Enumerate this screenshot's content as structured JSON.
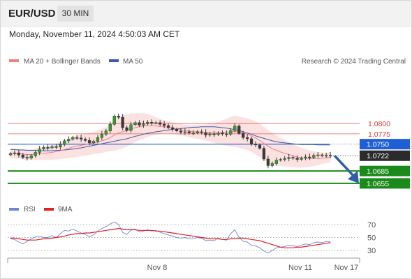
{
  "header": {
    "symbol": "EUR/USD",
    "timeframe": "30 MIN",
    "datetime": "Monday, November 11, 2024 4:50:03 AM CET"
  },
  "legend": {
    "ma20_label": "MA 20 + Bollinger Bands",
    "ma50_label": "MA 50",
    "copyright": "Research © 2024 Trading Central",
    "ma20_color": "#f08080",
    "ma50_color": "#3b5ba9"
  },
  "rsi_legend": {
    "rsi_label": "RSI",
    "ma_label": "9MA",
    "rsi_color": "#6f86d6",
    "ma_color": "#e02020"
  },
  "chart_data": {
    "type": "candlestick",
    "ylim": [
      1.0638,
      1.0898
    ],
    "x_labels": [
      "Nov 8",
      "Nov 11",
      "Nov 17"
    ],
    "price_levels": [
      {
        "value": "1.0800",
        "kind": "resistance",
        "color": "#e53935"
      },
      {
        "value": "1.0775",
        "kind": "resistance",
        "color": "#e53935"
      },
      {
        "value": "1.0750",
        "kind": "pivot",
        "color": "#1e5fd6"
      },
      {
        "value": "1.0722",
        "kind": "last",
        "color": "#2b2b2b"
      },
      {
        "value": "1.0685",
        "kind": "support",
        "color": "#1a8a1a"
      },
      {
        "value": "1.0655",
        "kind": "support",
        "color": "#1a8a1a"
      }
    ],
    "close": [
      1.0727,
      1.0729,
      1.0724,
      1.0718,
      1.0716,
      1.0722,
      1.073,
      1.0738,
      1.0742,
      1.0741,
      1.0744,
      1.0743,
      1.0749,
      1.0758,
      1.0762,
      1.0766,
      1.0765,
      1.0762,
      1.0759,
      1.0753,
      1.0757,
      1.0766,
      1.0774,
      1.0782,
      1.0798,
      1.0818,
      1.0815,
      1.079,
      1.0783,
      1.0797,
      1.0802,
      1.0796,
      1.0799,
      1.0803,
      1.0801,
      1.0802,
      1.0798,
      1.0795,
      1.079,
      1.0786,
      1.0782,
      1.0779,
      1.078,
      1.0777,
      1.0777,
      1.078,
      1.0778,
      1.0772,
      1.0775,
      1.0773,
      1.0777,
      1.0775,
      1.0774,
      1.0783,
      1.0794,
      1.0776,
      1.0766,
      1.0763,
      1.075,
      1.0748,
      1.074,
      1.0714,
      1.0698,
      1.0703,
      1.0711,
      1.0713,
      1.0715,
      1.0718,
      1.0716,
      1.0713,
      1.0716,
      1.0719,
      1.0718,
      1.0723,
      1.0724,
      1.0722,
      1.0723,
      1.0722
    ],
    "ma20": [
      1.0728,
      1.0727,
      1.0727,
      1.0726,
      1.0725,
      1.0725,
      1.0726,
      1.0727,
      1.0728,
      1.0729,
      1.073,
      1.0732,
      1.0734,
      1.0737,
      1.074,
      1.0743,
      1.0745,
      1.0747,
      1.0749,
      1.0751,
      1.0753,
      1.0755,
      1.0758,
      1.0761,
      1.0766,
      1.0772,
      1.0777,
      1.078,
      1.0783,
      1.0787,
      1.079,
      1.0792,
      1.0794,
      1.0795,
      1.0795,
      1.0794,
      1.0793,
      1.0792,
      1.0791,
      1.0789,
      1.0787,
      1.0785,
      1.0783,
      1.0782,
      1.078,
      1.078,
      1.0779,
      1.0778,
      1.0778,
      1.0777,
      1.0777,
      1.0778,
      1.0779,
      1.078,
      1.0781,
      1.0779,
      1.0777,
      1.0774,
      1.077,
      1.0765,
      1.0759,
      1.0752,
      1.0745,
      1.0739,
      1.0735,
      1.0731,
      1.0728,
      1.0725,
      1.0722,
      1.0719,
      1.0717,
      1.0716,
      1.0715,
      1.0715,
      1.0715,
      1.0716,
      1.0717,
      1.0718
    ],
    "ma50": [
      1.0737,
      1.0737,
      1.0736,
      1.0736,
      1.0735,
      1.0735,
      1.0735,
      1.0734,
      1.0734,
      1.0734,
      1.0734,
      1.0735,
      1.0735,
      1.0736,
      1.0737,
      1.0738,
      1.074,
      1.0741,
      1.0743,
      1.0745,
      1.0747,
      1.0749,
      1.0751,
      1.0753,
      1.0755,
      1.0757,
      1.0759,
      1.0761,
      1.0763,
      1.0766,
      1.0769,
      1.0771,
      1.0774,
      1.0776,
      1.0778,
      1.078,
      1.0781,
      1.0783,
      1.0784,
      1.0786,
      1.0787,
      1.0788,
      1.0789,
      1.079,
      1.0791,
      1.0791,
      1.0792,
      1.0792,
      1.0792,
      1.0792,
      1.0791,
      1.079,
      1.0789,
      1.0787,
      1.0785,
      1.0783,
      1.078,
      1.0777,
      1.0774,
      1.077,
      1.0767,
      1.0764,
      1.0761,
      1.0758,
      1.0756,
      1.0754,
      1.0753,
      1.0752,
      1.0751,
      1.075,
      1.0749,
      1.0749,
      1.0749,
      1.0749,
      1.0748,
      1.0748,
      1.0748,
      1.0748
    ],
    "bb_width": [
      0.0012,
      0.0012,
      0.0012,
      0.0013,
      0.0013,
      0.0013,
      0.0014,
      0.0015,
      0.0016,
      0.0017,
      0.0018,
      0.0019,
      0.002,
      0.0022,
      0.0024,
      0.0025,
      0.0026,
      0.0026,
      0.0027,
      0.0027,
      0.0027,
      0.0028,
      0.0029,
      0.003,
      0.0033,
      0.0038,
      0.004,
      0.004,
      0.0039,
      0.0037,
      0.0035,
      0.0033,
      0.0031,
      0.0028,
      0.0024,
      0.0021,
      0.0018,
      0.0016,
      0.0015,
      0.0014,
      0.0014,
      0.0014,
      0.0014,
      0.0015,
      0.0016,
      0.0017,
      0.0018,
      0.002,
      0.0022,
      0.0024,
      0.0027,
      0.003,
      0.0033,
      0.0036,
      0.0038,
      0.0038,
      0.0038,
      0.0038,
      0.0039,
      0.004,
      0.004,
      0.004,
      0.0039,
      0.0038,
      0.0036,
      0.0034,
      0.0032,
      0.003,
      0.0028,
      0.0026,
      0.0024,
      0.0022,
      0.002,
      0.0018,
      0.0016,
      0.0014,
      0.0013,
      0.0012
    ],
    "rsi": [
      48,
      47,
      43,
      40,
      44,
      48,
      51,
      52,
      50,
      50,
      53,
      50,
      56,
      61,
      60,
      63,
      60,
      57,
      55,
      51,
      54,
      60,
      64,
      67,
      71,
      74,
      70,
      58,
      55,
      61,
      63,
      59,
      60,
      62,
      60,
      61,
      58,
      56,
      54,
      52,
      50,
      49,
      50,
      48,
      48,
      50,
      49,
      45,
      46,
      45,
      49,
      47,
      46,
      56,
      62,
      50,
      44,
      43,
      38,
      37,
      34,
      29,
      26,
      30,
      34,
      35,
      36,
      38,
      37,
      36,
      38,
      40,
      39,
      42,
      43,
      42,
      44,
      43
    ],
    "rsi_ma": [
      49,
      49,
      48,
      47,
      46,
      46,
      46,
      47,
      48,
      48,
      49,
      50,
      51,
      52,
      54,
      55,
      56,
      56,
      57,
      57,
      58,
      59,
      60,
      61,
      62,
      63,
      64,
      63,
      62,
      62,
      62,
      61,
      61,
      61,
      61,
      60,
      60,
      59,
      58,
      57,
      56,
      55,
      54,
      53,
      52,
      51,
      50,
      49,
      48,
      48,
      48,
      47,
      47,
      48,
      48,
      49,
      49,
      48,
      47,
      46,
      45,
      43,
      41,
      39,
      37,
      35,
      34,
      34,
      34,
      35,
      35,
      36,
      37,
      38,
      39,
      40,
      41,
      42
    ],
    "rsi_ticks": [
      "70",
      "50",
      "30"
    ]
  }
}
